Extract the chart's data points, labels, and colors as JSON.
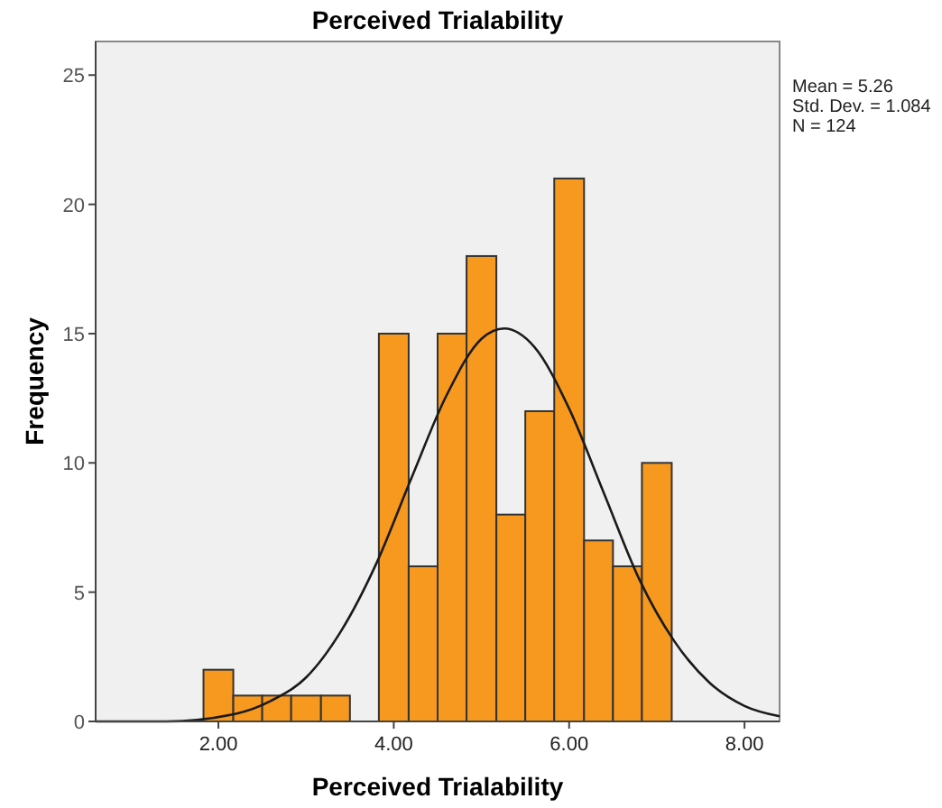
{
  "chart_data": {
    "type": "histogram",
    "title": "Perceived Trialability",
    "xlabel": "Perceived Trialability",
    "ylabel": "Frequency",
    "bins": [
      1.83,
      2.17,
      2.5,
      2.83,
      3.17,
      3.5,
      3.83,
      4.17,
      4.5,
      4.83,
      5.17,
      5.5,
      5.83,
      6.17,
      6.5,
      6.83,
      7.17
    ],
    "values": [
      2,
      1,
      1,
      1,
      1,
      0,
      15,
      6,
      15,
      18,
      8,
      12,
      21,
      7,
      6,
      10
    ],
    "color": "#f7991f",
    "series": [
      {
        "type": "line",
        "color": "#1a1a1a",
        "x": [
          0.6,
          1.4,
          2.2,
          2.6,
          3.0,
          3.4,
          3.8,
          4.2,
          4.6,
          5.0,
          5.26,
          5.6,
          6.0,
          6.4,
          6.8,
          7.2,
          7.6,
          8.0,
          8.4
        ],
        "values": [
          0,
          0,
          0.3,
          0.8,
          1.7,
          3.5,
          6.1,
          9.4,
          12.6,
          14.8,
          15.2,
          14.5,
          12.1,
          8.8,
          5.5,
          3.1,
          1.5,
          0.6,
          0.2
        ]
      }
    ],
    "xlim": [
      0.6,
      8.4
    ],
    "ylim": [
      0,
      26.3
    ],
    "xticks": [
      {
        "value": 2,
        "label": "2.00"
      },
      {
        "value": 4,
        "label": "4.00"
      },
      {
        "value": 6,
        "label": "6.00"
      },
      {
        "value": 8,
        "label": "8.00"
      }
    ],
    "yticks": [
      0,
      5,
      10,
      15,
      20,
      25
    ],
    "grid": false,
    "marker": "none",
    "annotations": [
      "Mean = 5.26",
      "Std. Dev. = 1.084",
      "N = 124"
    ]
  }
}
